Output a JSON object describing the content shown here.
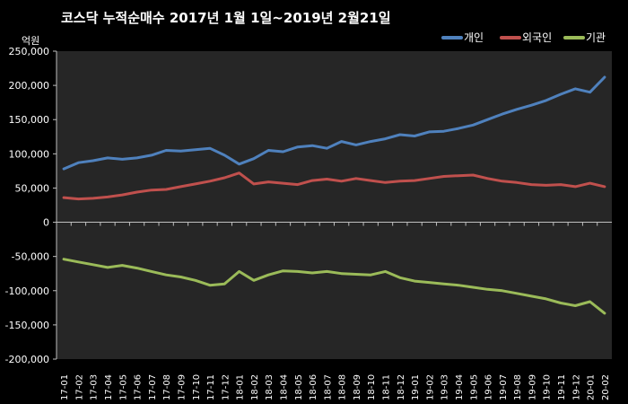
{
  "chart_data": {
    "type": "line",
    "title": "코스닥  누적순매수 2017년 1월 1일~2019년 2월21일",
    "ylabel": "억원",
    "ylim": [
      -200000,
      250000
    ],
    "yticks": [
      250000,
      200000,
      150000,
      100000,
      50000,
      0,
      -50000,
      -100000,
      -150000,
      -200000
    ],
    "ytick_labels": [
      "250,000",
      "200,000",
      "150,000",
      "100,000",
      "50,000",
      "0",
      "-50,000",
      "-100,000",
      "-150,000",
      "-200,000"
    ],
    "categories": [
      "17-01",
      "17-02",
      "17-03",
      "17-04",
      "17-05",
      "17-06",
      "17-07",
      "17-08",
      "17-09",
      "17-10",
      "17-11",
      "17-12",
      "18-01",
      "18-02",
      "18-03",
      "18-04",
      "18-05",
      "18-06",
      "18-07",
      "18-08",
      "18-09",
      "18-10",
      "18-11",
      "18-12",
      "19-01",
      "19-02",
      "19-03",
      "19-04",
      "19-05",
      "19-06",
      "19-07",
      "19-08",
      "19-09",
      "19-10",
      "19-11",
      "19-12",
      "20-01",
      "20-02"
    ],
    "grid": false,
    "legend": "top-right",
    "series": [
      {
        "name": "개인",
        "color": "#4F81BD",
        "values": [
          78000,
          87000,
          90000,
          94000,
          92000,
          94000,
          98000,
          105000,
          104000,
          106000,
          108000,
          98000,
          85000,
          93000,
          105000,
          103000,
          110000,
          112000,
          108000,
          118000,
          113000,
          118000,
          122000,
          128000,
          126000,
          132000,
          133000,
          137000,
          142000,
          150000,
          158000,
          165000,
          171000,
          178000,
          187000,
          195000,
          190000,
          212000
        ]
      },
      {
        "name": "외국인",
        "color": "#C0504D",
        "values": [
          36000,
          34000,
          35000,
          37000,
          40000,
          44000,
          47000,
          48000,
          52000,
          56000,
          60000,
          65000,
          72000,
          56000,
          59000,
          57000,
          55000,
          61000,
          63000,
          60000,
          64000,
          61000,
          58000,
          60000,
          61000,
          64000,
          67000,
          68000,
          69000,
          64000,
          60000,
          58000,
          55000,
          54000,
          55000,
          52000,
          57000,
          52000
        ]
      },
      {
        "name": "기관",
        "color": "#9BBB59",
        "values": [
          -54000,
          -58000,
          -62000,
          -66000,
          -63000,
          -67000,
          -72000,
          -77000,
          -80000,
          -85000,
          -92000,
          -90000,
          -72000,
          -85000,
          -77000,
          -71000,
          -72000,
          -74000,
          -72000,
          -75000,
          -76000,
          -77000,
          -72000,
          -81000,
          -86000,
          -88000,
          -90000,
          -92000,
          -95000,
          -98000,
          -100000,
          -104000,
          -108000,
          -112000,
          -118000,
          -122000,
          -116000,
          -133000
        ]
      }
    ]
  }
}
